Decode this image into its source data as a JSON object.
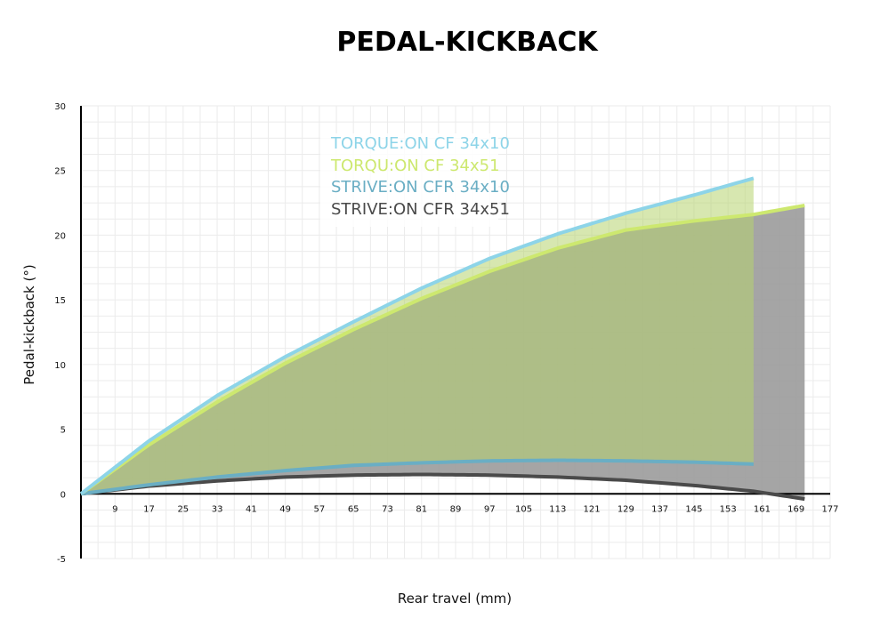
{
  "chart_data": {
    "type": "area",
    "title": "PEDAL-KICKBACK",
    "xlabel": "Rear travel (mm)",
    "ylabel": "Pedal-kickback (°)",
    "xlim": [
      1,
      177
    ],
    "ylim": [
      -5,
      30
    ],
    "xticks": [
      9,
      17,
      25,
      33,
      41,
      49,
      57,
      65,
      73,
      81,
      89,
      97,
      105,
      113,
      121,
      129,
      137,
      145,
      153,
      161,
      169,
      177
    ],
    "yticks": [
      -5,
      0,
      5,
      10,
      15,
      20,
      25,
      30
    ],
    "grid": true,
    "legend_position": "top-center",
    "series": [
      {
        "name": "TORQUE:ON CF 34x10",
        "color": "#8dd4e8",
        "x": [
          1,
          17,
          33,
          49,
          65,
          81,
          97,
          113,
          129,
          145,
          159
        ],
        "y": [
          0,
          4.1,
          7.6,
          10.6,
          13.3,
          15.9,
          18.2,
          20.1,
          21.7,
          23.1,
          24.4
        ]
      },
      {
        "name": "TORQU:ON CF 34x51",
        "color": "#cde86f",
        "x": [
          1,
          17,
          33,
          49,
          65,
          81,
          97,
          113,
          129,
          145,
          159,
          171
        ],
        "y": [
          0,
          3.8,
          7.1,
          10.1,
          12.7,
          15.1,
          17.2,
          19.0,
          20.4,
          21.1,
          21.6,
          22.3
        ]
      },
      {
        "name": "STRIVE:ON CFR 34x10",
        "color": "#6aaec4",
        "x": [
          1,
          17,
          33,
          49,
          65,
          81,
          97,
          113,
          129,
          145,
          159
        ],
        "y": [
          0,
          0.7,
          1.3,
          1.8,
          2.2,
          2.4,
          2.55,
          2.6,
          2.55,
          2.45,
          2.3
        ]
      },
      {
        "name": "STRIVE:ON CFR 34x51",
        "color": "#4a4a4a",
        "x": [
          1,
          17,
          33,
          49,
          65,
          81,
          97,
          113,
          129,
          145,
          159,
          171
        ],
        "y": [
          0,
          0.6,
          1.0,
          1.3,
          1.45,
          1.5,
          1.45,
          1.3,
          1.05,
          0.65,
          0.2,
          -0.4
        ]
      }
    ]
  }
}
